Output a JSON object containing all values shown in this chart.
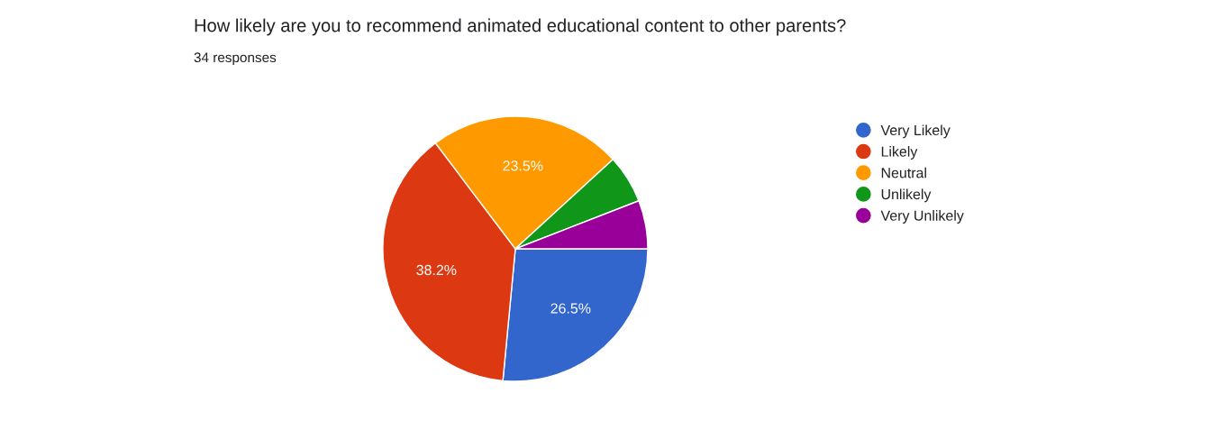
{
  "chart_data": {
    "type": "pie",
    "title": "How likely are you to recommend animated educational content to other parents?",
    "subtitle": "34 responses",
    "categories": [
      "Very Likely",
      "Likely",
      "Neutral",
      "Unlikely",
      "Very Unlikely"
    ],
    "values": [
      26.5,
      38.2,
      23.5,
      5.9,
      5.9
    ],
    "colors": [
      "#3366cc",
      "#dc3912",
      "#ff9900",
      "#109618",
      "#990099"
    ],
    "value_labels": [
      "26.5%",
      "38.2%",
      "23.5%",
      null,
      null
    ],
    "legend": "right"
  }
}
